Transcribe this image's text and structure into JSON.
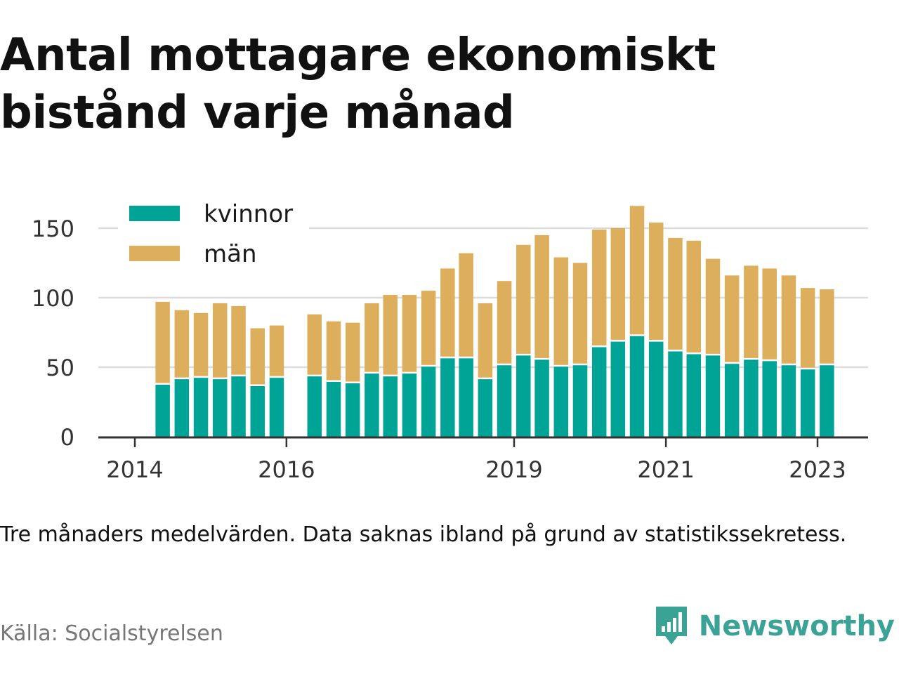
{
  "title": "Antal mottagare ekonomiskt bistånd varje månad",
  "caption": "Tre månaders medelvärden. Data saknas ibland på grund av statistikssekretess.",
  "source": "Källa: Socialstyrelsen",
  "brand": {
    "name": "Newsworthy",
    "color": "#3aa395"
  },
  "colors": {
    "kvinnor": "#00a497",
    "man": "#ddae5c",
    "grid": "#dcdcdc",
    "axis": "#333333"
  },
  "chart_data": {
    "type": "bar",
    "stacked": true,
    "x_unit": "date",
    "ylim": [
      0,
      170
    ],
    "yticks": [
      0,
      50,
      100,
      150
    ],
    "xticks": [
      {
        "label": "2014",
        "date": "2014-01-01"
      },
      {
        "label": "2016",
        "date": "2016-01-01"
      },
      {
        "label": "2019",
        "date": "2019-01-01"
      },
      {
        "label": "2021",
        "date": "2021-01-01"
      },
      {
        "label": "2023",
        "date": "2023-01-01"
      }
    ],
    "grid": true,
    "legend_position": "top-left",
    "dates": [
      "2014-05",
      "2014-08",
      "2014-11",
      "2015-02",
      "2015-05",
      "2015-08",
      "2015-11",
      "2016-05",
      "2016-08",
      "2016-11",
      "2017-02",
      "2017-05",
      "2017-08",
      "2017-11",
      "2018-02",
      "2018-05",
      "2018-08",
      "2018-11",
      "2019-02",
      "2019-05",
      "2019-08",
      "2019-11",
      "2020-02",
      "2020-05",
      "2020-08",
      "2020-11",
      "2021-02",
      "2021-05",
      "2021-08",
      "2021-11",
      "2022-02",
      "2022-05",
      "2022-08",
      "2022-11",
      "2023-02"
    ],
    "series": [
      {
        "name": "kvinnor",
        "values": [
          38,
          42,
          43,
          42,
          44,
          37,
          43,
          44,
          40,
          39,
          46,
          44,
          46,
          51,
          57,
          57,
          42,
          52,
          59,
          56,
          51,
          52,
          65,
          69,
          73,
          69,
          62,
          60,
          59,
          53,
          56,
          55,
          52,
          49,
          52
        ]
      },
      {
        "name": "män",
        "values": [
          59,
          49,
          46,
          54,
          50,
          41,
          37,
          44,
          43,
          43,
          50,
          58,
          56,
          54,
          64,
          75,
          54,
          60,
          79,
          89,
          78,
          73,
          84,
          81,
          93,
          85,
          81,
          81,
          69,
          63,
          67,
          66,
          64,
          58,
          54
        ]
      }
    ]
  }
}
